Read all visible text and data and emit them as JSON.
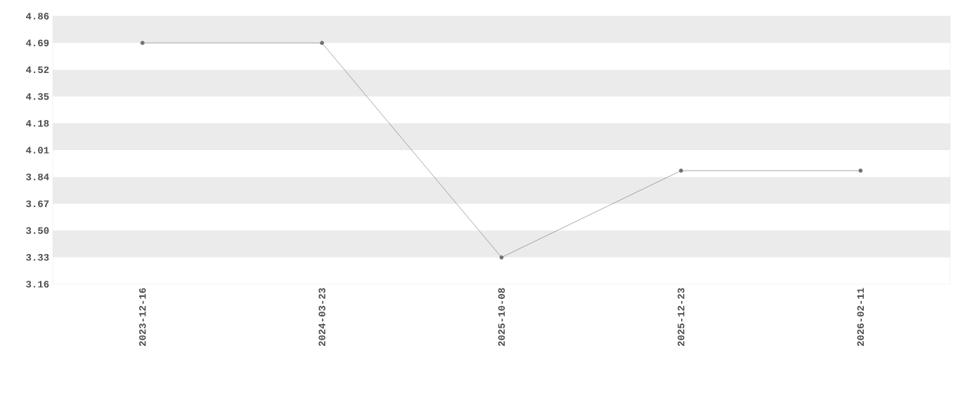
{
  "chart_data": {
    "type": "line",
    "categories": [
      "2023-12-16",
      "2024-03-23",
      "2025-10-08",
      "2025-12-23",
      "2026-02-11"
    ],
    "values": [
      4.69,
      4.69,
      3.33,
      3.88,
      3.88
    ],
    "color": "#707070",
    "marker": "circle",
    "ylim": [
      3.16,
      4.86
    ],
    "yticks": [
      3.16,
      3.33,
      {
        "value": 3.5,
        "label": "3.50"
      },
      3.67,
      3.84,
      4.01,
      4.18,
      4.35,
      4.52,
      4.69,
      4.86
    ],
    "bands": [
      {
        "axis": "y",
        "from": 4.69,
        "to": 4.86,
        "color": "#ebebeb"
      },
      {
        "axis": "y",
        "from": 4.35,
        "to": 4.52,
        "color": "#ebebeb"
      },
      {
        "axis": "y",
        "from": 4.01,
        "to": 4.18,
        "color": "#ebebeb"
      },
      {
        "axis": "y",
        "from": 3.67,
        "to": 3.84,
        "color": "#ebebeb"
      },
      {
        "axis": "y",
        "from": 3.33,
        "to": 3.5,
        "color": "#ebebeb"
      }
    ]
  }
}
